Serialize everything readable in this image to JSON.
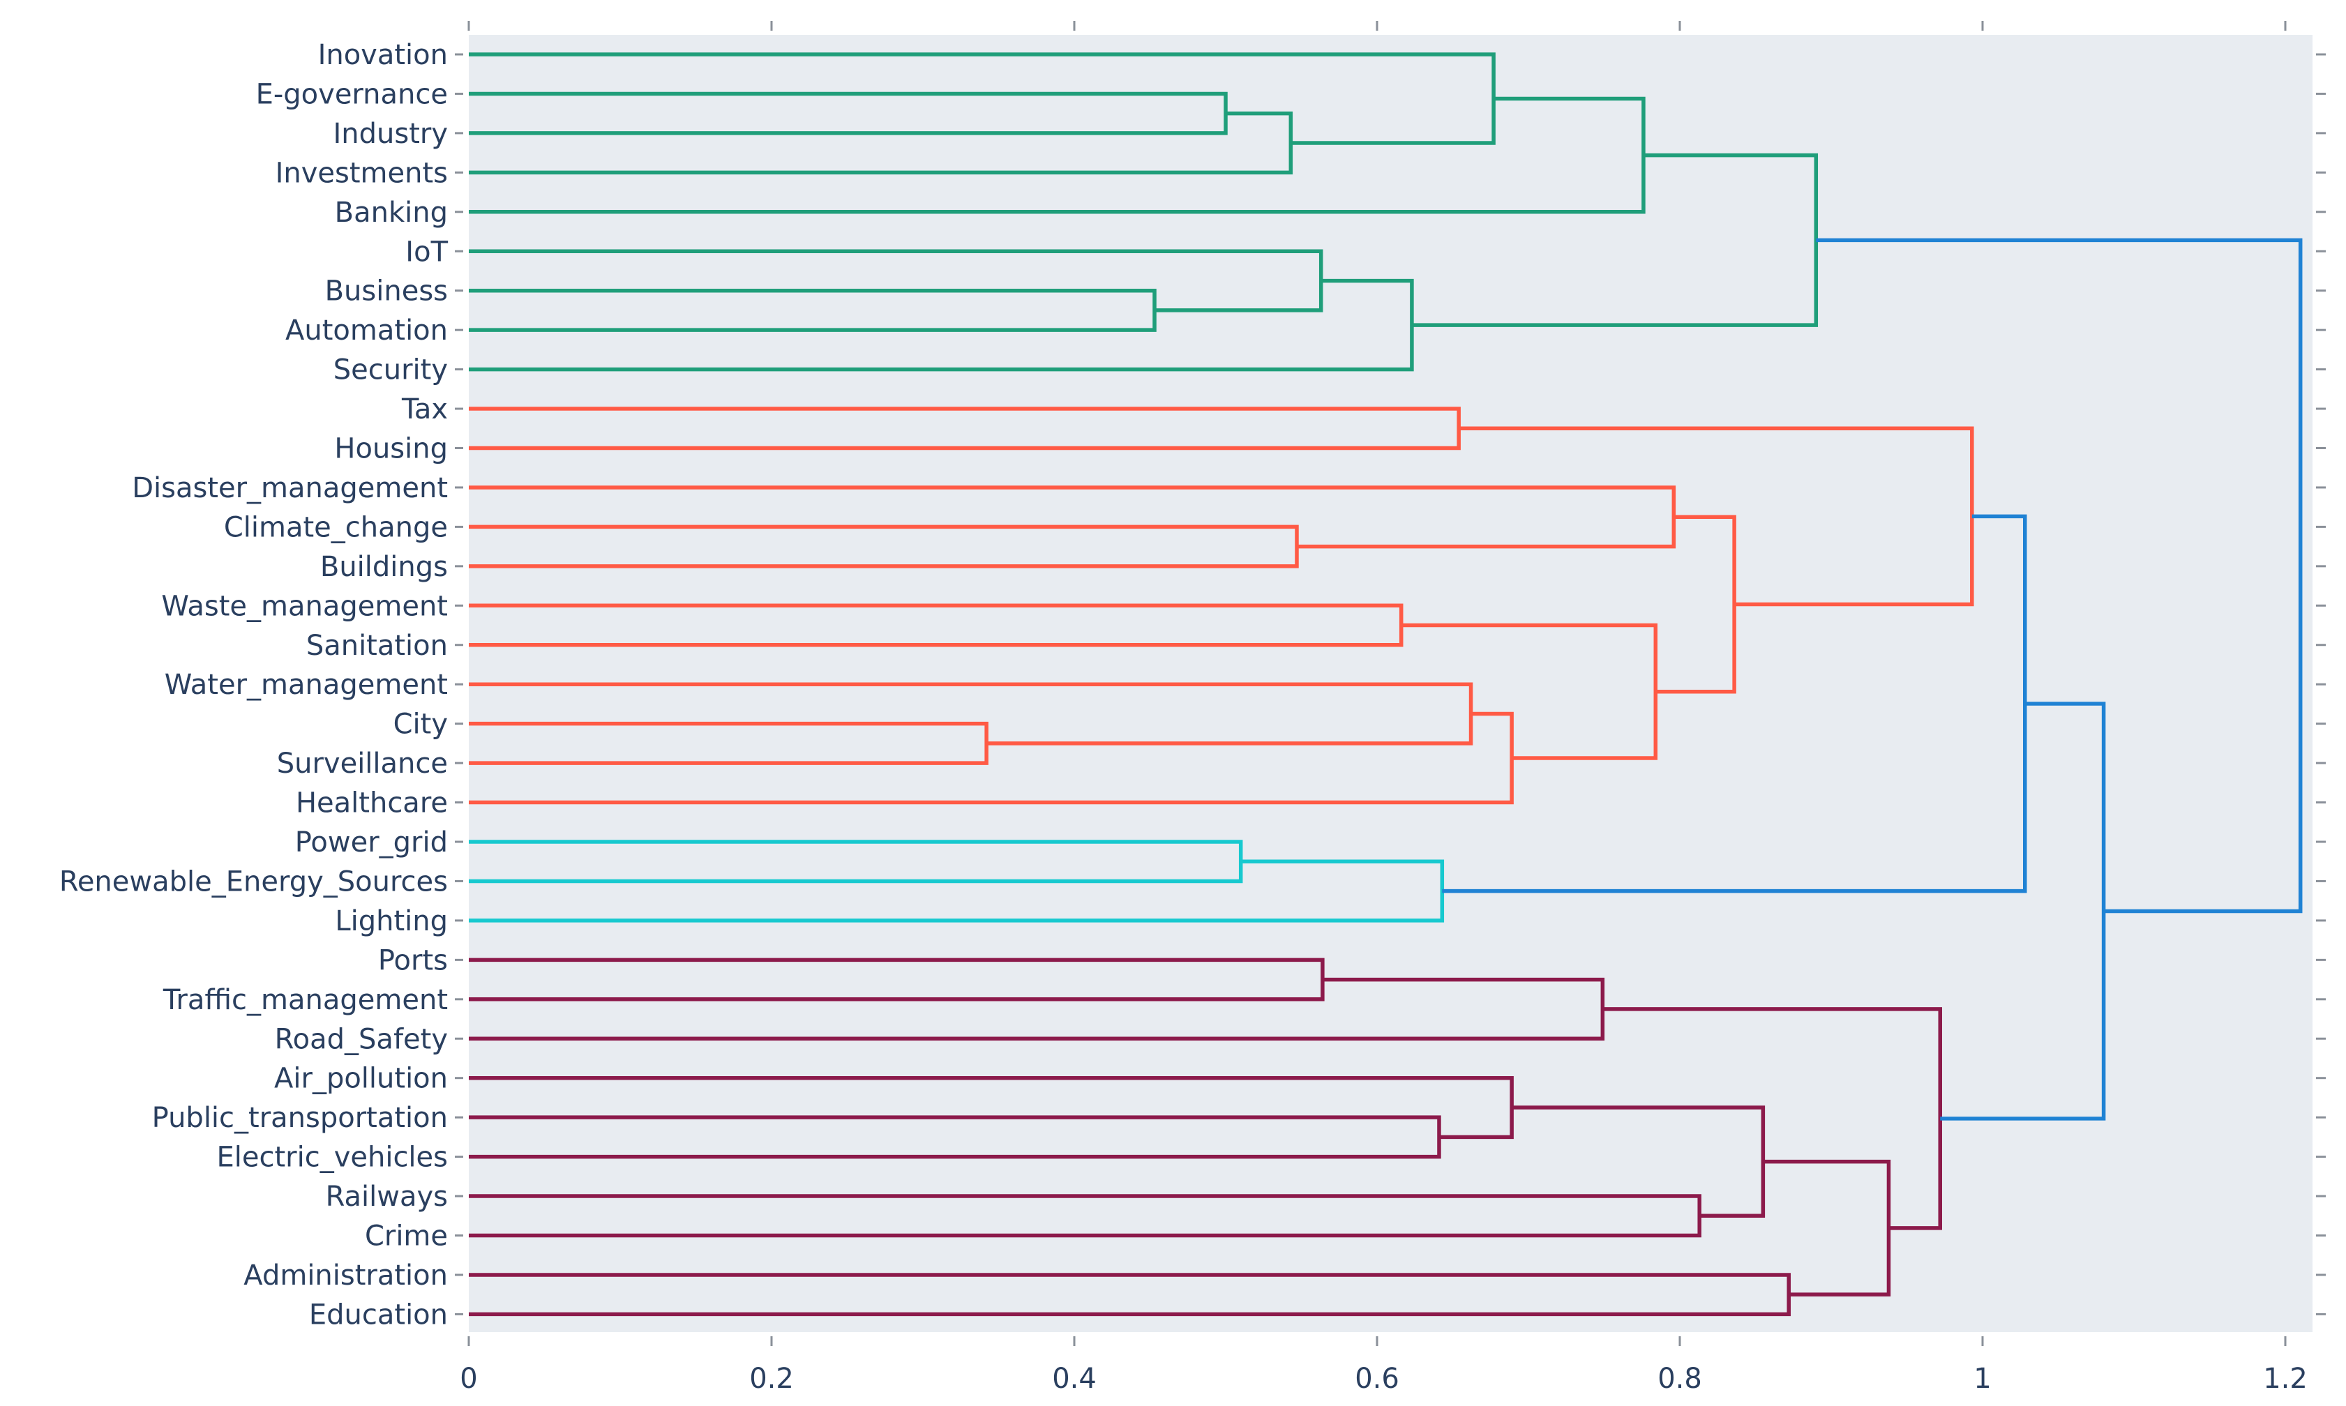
{
  "chart_data": {
    "type": "dendrogram",
    "orientation": "horizontal",
    "title": "",
    "xlabel": "",
    "ylabel": "",
    "xlim": [
      0,
      1.22
    ],
    "x_ticks": [
      0,
      0.2,
      0.4,
      0.6,
      0.8,
      1,
      1.2
    ],
    "x_tick_labels": [
      "0",
      "0.2",
      "0.4",
      "0.6",
      "0.8",
      "1",
      "1.2"
    ],
    "colors": {
      "cluster_green": "#1f9e7a",
      "cluster_red": "#ff5a45",
      "cluster_cyan": "#17c9cf",
      "cluster_maroon": "#8c1a4b",
      "root_blue": "#1f82d4",
      "plot_bg": "#e8ecf1",
      "axis_text": "#2a3f5f"
    },
    "leaves": [
      "Inovation",
      "E-governance",
      "Industry",
      "Investments",
      "Banking",
      "IoT",
      "Business",
      "Automation",
      "Security",
      "Tax",
      "Housing",
      "Disaster_management",
      "Climate_change",
      "Buildings",
      "Waste_management",
      "Sanitation",
      "Water_management",
      "City",
      "Surveillance",
      "Healthcare",
      "Power_grid",
      "Renewable_Energy_Sources",
      "Lighting",
      "Ports",
      "Traffic_management",
      "Road_Safety",
      "Air_pollution",
      "Public_transportation",
      "Electric_vehicles",
      "Railways",
      "Crime",
      "Administration",
      "Education"
    ],
    "merges": [
      {
        "id": "m1",
        "a": "E-governance",
        "b": "Industry",
        "height": 0.5,
        "color": "cluster_green"
      },
      {
        "id": "m2",
        "a": "m1",
        "b": "Investments",
        "height": 0.543,
        "color": "cluster_green"
      },
      {
        "id": "m3",
        "a": "Inovation",
        "b": "m2",
        "height": 0.677,
        "color": "cluster_green"
      },
      {
        "id": "m4",
        "a": "m3",
        "b": "Banking",
        "height": 0.776,
        "color": "cluster_green"
      },
      {
        "id": "m5",
        "a": "Business",
        "b": "Automation",
        "height": 0.453,
        "color": "cluster_green"
      },
      {
        "id": "m6",
        "a": "IoT",
        "b": "m5",
        "height": 0.563,
        "color": "cluster_green"
      },
      {
        "id": "m7",
        "a": "m6",
        "b": "Security",
        "height": 0.623,
        "color": "cluster_green"
      },
      {
        "id": "m8",
        "a": "m4",
        "b": "m7",
        "height": 0.89,
        "color": "cluster_green"
      },
      {
        "id": "m9",
        "a": "Tax",
        "b": "Housing",
        "height": 0.654,
        "color": "cluster_red"
      },
      {
        "id": "m10",
        "a": "Climate_change",
        "b": "Buildings",
        "height": 0.547,
        "color": "cluster_red"
      },
      {
        "id": "m11",
        "a": "Disaster_management",
        "b": "m10",
        "height": 0.796,
        "color": "cluster_red"
      },
      {
        "id": "m12",
        "a": "Waste_management",
        "b": "Sanitation",
        "height": 0.616,
        "color": "cluster_red"
      },
      {
        "id": "m13",
        "a": "City",
        "b": "Surveillance",
        "height": 0.342,
        "color": "cluster_red"
      },
      {
        "id": "m14",
        "a": "Water_management",
        "b": "m13",
        "height": 0.662,
        "color": "cluster_red"
      },
      {
        "id": "m15",
        "a": "m14",
        "b": "Healthcare",
        "height": 0.689,
        "color": "cluster_red"
      },
      {
        "id": "m16",
        "a": "m12",
        "b": "m15",
        "height": 0.784,
        "color": "cluster_red"
      },
      {
        "id": "m17",
        "a": "m11",
        "b": "m16",
        "height": 0.836,
        "color": "cluster_red"
      },
      {
        "id": "m18",
        "a": "m9",
        "b": "m17",
        "height": 0.993,
        "color": "cluster_red"
      },
      {
        "id": "m19",
        "a": "Power_grid",
        "b": "Renewable_Energy_Sources",
        "height": 0.51,
        "color": "cluster_cyan"
      },
      {
        "id": "m20",
        "a": "m19",
        "b": "Lighting",
        "height": 0.643,
        "color": "cluster_cyan"
      },
      {
        "id": "m21",
        "a": "Ports",
        "b": "Traffic_management",
        "height": 0.564,
        "color": "cluster_maroon"
      },
      {
        "id": "m22",
        "a": "m21",
        "b": "Road_Safety",
        "height": 0.749,
        "color": "cluster_maroon"
      },
      {
        "id": "m23",
        "a": "Public_transportation",
        "b": "Electric_vehicles",
        "height": 0.641,
        "color": "cluster_maroon"
      },
      {
        "id": "m24",
        "a": "Air_pollution",
        "b": "m23",
        "height": 0.689,
        "color": "cluster_maroon"
      },
      {
        "id": "m25",
        "a": "Railways",
        "b": "Crime",
        "height": 0.813,
        "color": "cluster_maroon"
      },
      {
        "id": "m26",
        "a": "m24",
        "b": "m25",
        "height": 0.855,
        "color": "cluster_maroon"
      },
      {
        "id": "m27",
        "a": "Administration",
        "b": "Education",
        "height": 0.872,
        "color": "cluster_maroon"
      },
      {
        "id": "m28",
        "a": "m26",
        "b": "m27",
        "height": 0.938,
        "color": "cluster_maroon"
      },
      {
        "id": "m29",
        "a": "m22",
        "b": "m28",
        "height": 0.972,
        "color": "cluster_maroon"
      },
      {
        "id": "m30",
        "a": "m18",
        "b": "m20",
        "height": 1.028,
        "color": "root_blue"
      },
      {
        "id": "m31",
        "a": "m30",
        "b": "m29",
        "height": 1.08,
        "color": "root_blue"
      },
      {
        "id": "m32",
        "a": "m8",
        "b": "m31",
        "height": 1.21,
        "color": "root_blue"
      }
    ]
  }
}
